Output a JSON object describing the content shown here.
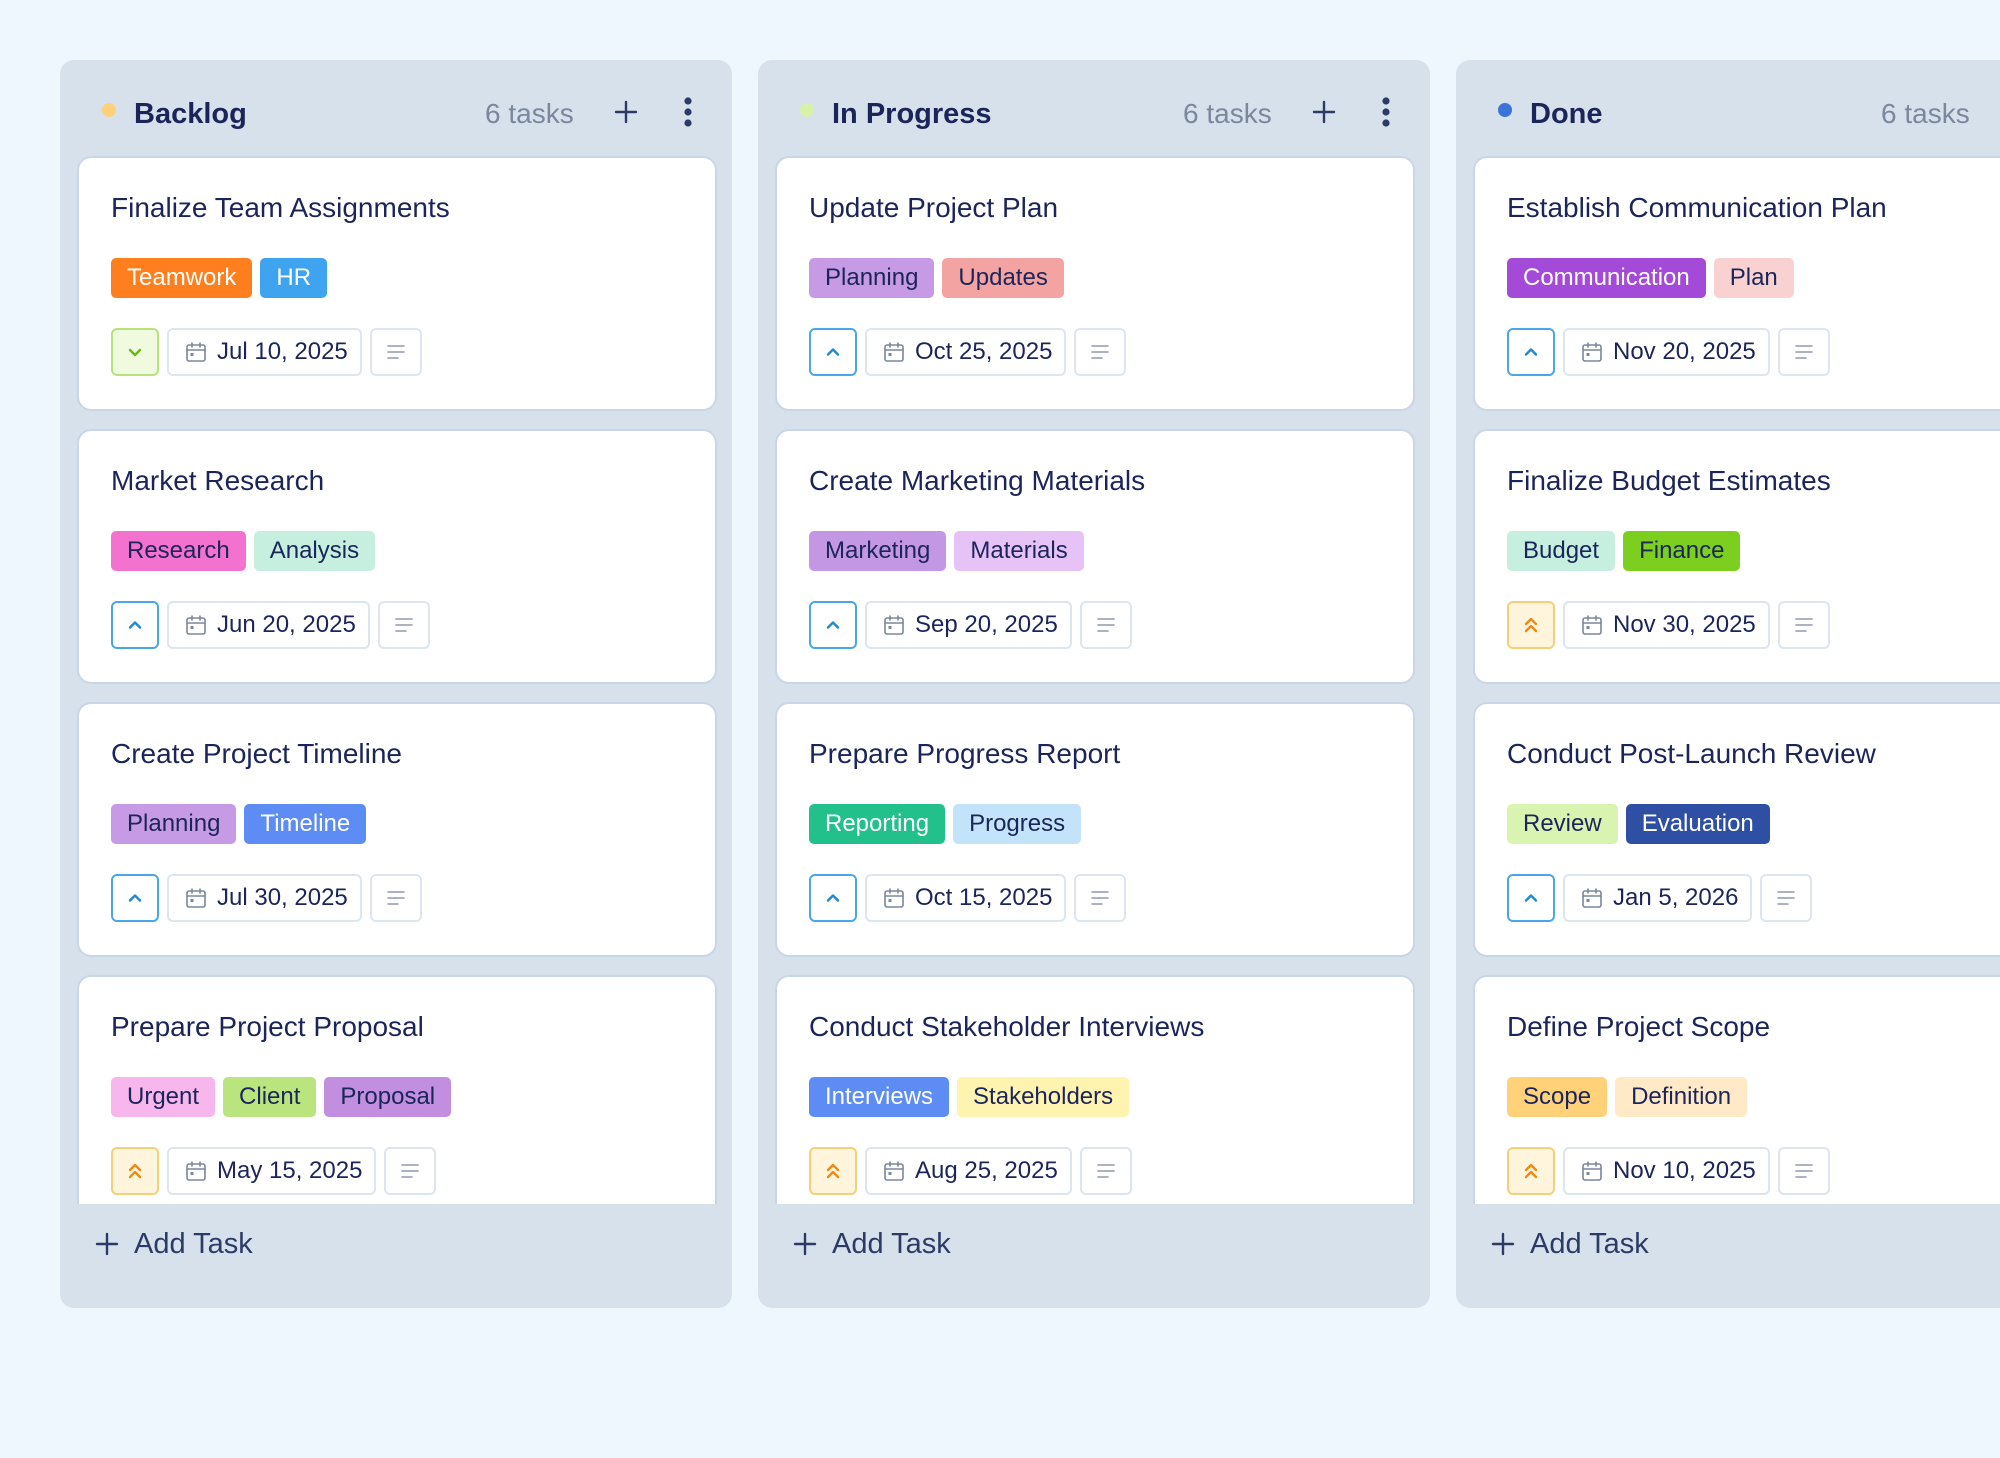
{
  "colors": {
    "background": "#eff7fe",
    "column": "#d7e1ec",
    "card_border": "#c9d6e6",
    "text": "#1b2559",
    "muted": "#7b879c"
  },
  "add_task_label": "Add Task",
  "columns": [
    {
      "title": "Backlog",
      "count": "6 tasks",
      "dot_color": "#ffd27a",
      "cards": [
        {
          "title": "Finalize Team Assignments",
          "tags": [
            {
              "label": "Teamwork",
              "bg": "#ff7f1e",
              "fg": "#ffffff"
            },
            {
              "label": "HR",
              "bg": "#3ea4ef",
              "fg": "#ffffff"
            }
          ],
          "priority": "low",
          "date": "Jul 10, 2025"
        },
        {
          "title": "Market Research",
          "tags": [
            {
              "label": "Research",
              "bg": "#f472cf",
              "fg": "#1b2559"
            },
            {
              "label": "Analysis",
              "bg": "#c7efdf",
              "fg": "#1b2559"
            }
          ],
          "priority": "medium",
          "date": "Jun 20, 2025"
        },
        {
          "title": "Create Project Timeline",
          "tags": [
            {
              "label": "Planning",
              "bg": "#c79ae5",
              "fg": "#1b2559"
            },
            {
              "label": "Timeline",
              "bg": "#5d8cf5",
              "fg": "#ffffff"
            }
          ],
          "priority": "medium",
          "date": "Jul 30, 2025"
        },
        {
          "title": "Prepare Project Proposal",
          "tags": [
            {
              "label": "Urgent",
              "bg": "#f7b6ec",
              "fg": "#1b2559"
            },
            {
              "label": "Client",
              "bg": "#b9e47e",
              "fg": "#1b2559"
            },
            {
              "label": "Proposal",
              "bg": "#c18ee0",
              "fg": "#1b2559"
            }
          ],
          "priority": "high",
          "date": "May 15, 2025"
        }
      ]
    },
    {
      "title": "In Progress",
      "count": "6 tasks",
      "dot_color": "#d8f1a8",
      "cards": [
        {
          "title": "Update Project Plan",
          "tags": [
            {
              "label": "Planning",
              "bg": "#c79ae5",
              "fg": "#1b2559"
            },
            {
              "label": "Updates",
              "bg": "#f4a3a3",
              "fg": "#1b2559"
            }
          ],
          "priority": "medium",
          "date": "Oct 25, 2025"
        },
        {
          "title": "Create Marketing Materials",
          "tags": [
            {
              "label": "Marketing",
              "bg": "#c497e4",
              "fg": "#1b2559"
            },
            {
              "label": "Materials",
              "bg": "#e6c2f7",
              "fg": "#1b2559"
            }
          ],
          "priority": "medium",
          "date": "Sep 20, 2025"
        },
        {
          "title": "Prepare Progress Report",
          "tags": [
            {
              "label": "Reporting",
              "bg": "#22c08b",
              "fg": "#ffffff"
            },
            {
              "label": "Progress",
              "bg": "#c3e3fa",
              "fg": "#1b2559"
            }
          ],
          "priority": "medium",
          "date": "Oct 15, 2025"
        },
        {
          "title": "Conduct Stakeholder Interviews",
          "tags": [
            {
              "label": "Interviews",
              "bg": "#5d8cf5",
              "fg": "#ffffff"
            },
            {
              "label": "Stakeholders",
              "bg": "#fff3b0",
              "fg": "#1b2559"
            }
          ],
          "priority": "high",
          "date": "Aug 25, 2025"
        }
      ]
    },
    {
      "title": "Done",
      "count": "6 tasks",
      "dot_color": "#3b73d9",
      "cards": [
        {
          "title": "Establish Communication Plan",
          "tags": [
            {
              "label": "Communication",
              "bg": "#a34bd8",
              "fg": "#ffffff"
            },
            {
              "label": "Plan",
              "bg": "#fad1d1",
              "fg": "#1b2559"
            }
          ],
          "priority": "medium",
          "date": "Nov 20, 2025"
        },
        {
          "title": "Finalize Budget Estimates",
          "tags": [
            {
              "label": "Budget",
              "bg": "#c7efdf",
              "fg": "#1b2559"
            },
            {
              "label": "Finance",
              "bg": "#7ccf1f",
              "fg": "#1b2559"
            }
          ],
          "priority": "high",
          "date": "Nov 30, 2025"
        },
        {
          "title": "Conduct Post-Launch Review",
          "tags": [
            {
              "label": "Review",
              "bg": "#d9f3b0",
              "fg": "#1b2559"
            },
            {
              "label": "Evaluation",
              "bg": "#2e4fa3",
              "fg": "#ffffff"
            }
          ],
          "priority": "medium",
          "date": "Jan 5, 2026"
        },
        {
          "title": "Define Project Scope",
          "tags": [
            {
              "label": "Scope",
              "bg": "#ffd27a",
              "fg": "#1b2559"
            },
            {
              "label": "Definition",
              "bg": "#ffe9c7",
              "fg": "#1b2559"
            }
          ],
          "priority": "high",
          "date": "Nov 10, 2025"
        }
      ]
    }
  ]
}
